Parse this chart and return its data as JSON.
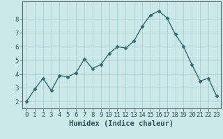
{
  "x": [
    0,
    1,
    2,
    3,
    4,
    5,
    6,
    7,
    8,
    9,
    10,
    11,
    12,
    13,
    14,
    15,
    16,
    17,
    18,
    19,
    20,
    21,
    22,
    23
  ],
  "y": [
    2.0,
    2.9,
    3.7,
    2.8,
    3.9,
    3.8,
    4.1,
    5.1,
    4.4,
    4.7,
    5.5,
    6.0,
    5.9,
    6.4,
    7.5,
    8.3,
    8.6,
    8.1,
    6.9,
    6.0,
    4.7,
    3.5,
    3.7,
    2.4
  ],
  "xlabel": "Humidex (Indice chaleur)",
  "xticks": [
    0,
    1,
    2,
    3,
    4,
    5,
    6,
    7,
    8,
    9,
    10,
    11,
    12,
    13,
    14,
    15,
    16,
    17,
    18,
    19,
    20,
    21,
    22,
    23
  ],
  "yticks": [
    2,
    3,
    4,
    5,
    6,
    7,
    8
  ],
  "ylim": [
    1.5,
    9.3
  ],
  "xlim": [
    -0.5,
    23.5
  ],
  "line_color": "#2d6e6e",
  "marker": "D",
  "marker_size": 2.5,
  "bg_color": "#cce8e8",
  "grid_color": "#aacece",
  "axis_border_color": "#556666",
  "tick_color": "#2d5555",
  "xlabel_fontsize": 7.5,
  "tick_fontsize": 6.5
}
